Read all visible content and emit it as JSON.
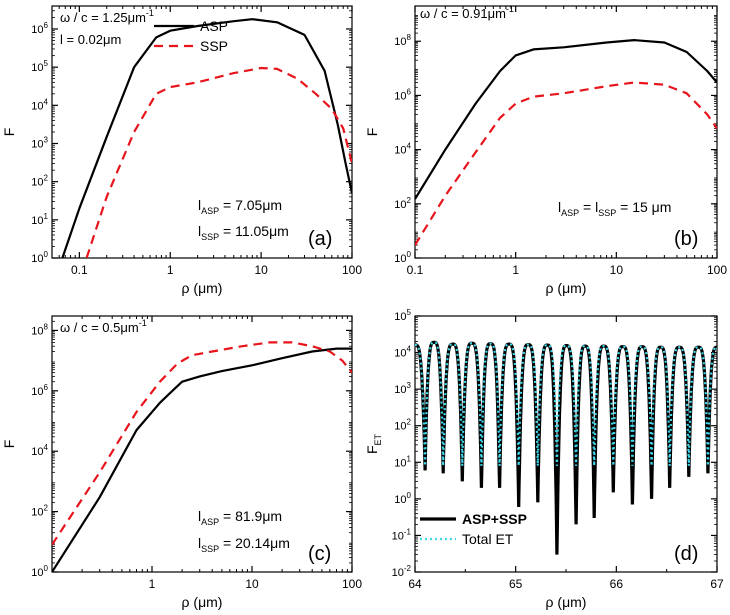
{
  "chart_data": [
    {
      "panel_label": "(a)",
      "type": "line",
      "xscale": "log",
      "yscale": "log",
      "xlim": [
        0.05,
        100
      ],
      "ylim": [
        1,
        4000000
      ],
      "x_ticks": [
        {
          "v": 0.1,
          "label": "0.1"
        },
        {
          "v": 1,
          "label": "1"
        },
        {
          "v": 10,
          "label": "10"
        },
        {
          "v": 100,
          "label": "100"
        }
      ],
      "y_ticks": [
        {
          "v": 1,
          "base": "10",
          "exp": "0"
        },
        {
          "v": 10,
          "base": "10",
          "exp": "1"
        },
        {
          "v": 100,
          "base": "10",
          "exp": "2"
        },
        {
          "v": 1000,
          "base": "10",
          "exp": "3"
        },
        {
          "v": 10000,
          "base": "10",
          "exp": "4"
        },
        {
          "v": 100000,
          "base": "10",
          "exp": "5"
        },
        {
          "v": 1000000,
          "base": "10",
          "exp": "6"
        }
      ],
      "xlabel": "ρ (μm)",
      "ylabel": "F",
      "ylabel_sub": "",
      "annotations": [
        {
          "base": "ω / c = 1.25μm",
          "sup": "-1",
          "sub": "",
          "tail": "",
          "pos": "top-left"
        },
        {
          "base": "l = 0.02μm",
          "sup": "",
          "sub": "",
          "tail": "",
          "pos": "top-left-2"
        }
      ],
      "lengths": [
        {
          "base": "l",
          "sub": "ASP",
          "tail": " = 7.05μm"
        },
        {
          "base": "l",
          "sub": "SSP",
          "tail": " = 11.05μm"
        }
      ],
      "legend": {
        "position": "top-center",
        "entries": [
          {
            "name": "ASP",
            "color": "#000000",
            "dash": "solid"
          },
          {
            "name": "SSP",
            "color": "#e8141c",
            "dash": "dashed"
          }
        ]
      },
      "series": [
        {
          "name": "ASP",
          "color": "#000000",
          "dash": "solid",
          "points": [
            [
              0.065,
              1
            ],
            [
              0.1,
              20
            ],
            [
              0.2,
              1500
            ],
            [
              0.4,
              100000
            ],
            [
              0.7,
              600000
            ],
            [
              1,
              900000
            ],
            [
              2,
              1200000
            ],
            [
              5,
              1600000
            ],
            [
              8,
              1800000
            ],
            [
              15,
              1500000
            ],
            [
              30,
              700000
            ],
            [
              50,
              80000
            ],
            [
              70,
              3000
            ],
            [
              85,
              300
            ],
            [
              100,
              50
            ]
          ]
        },
        {
          "name": "SSP",
          "color": "#e8141c",
          "dash": "dashed",
          "points": [
            [
              0.12,
              1
            ],
            [
              0.2,
              40
            ],
            [
              0.4,
              2000
            ],
            [
              0.7,
              20000
            ],
            [
              1,
              30000
            ],
            [
              2,
              40000
            ],
            [
              5,
              70000
            ],
            [
              10,
              95000
            ],
            [
              15,
              90000
            ],
            [
              25,
              50000
            ],
            [
              40,
              20000
            ],
            [
              60,
              8000
            ],
            [
              80,
              2500
            ],
            [
              100,
              300
            ]
          ]
        }
      ]
    },
    {
      "panel_label": "(b)",
      "type": "line",
      "xscale": "log",
      "yscale": "log",
      "xlim": [
        0.1,
        100
      ],
      "ylim": [
        1,
        2000000000
      ],
      "x_ticks": [
        {
          "v": 0.1,
          "label": "0.1"
        },
        {
          "v": 1,
          "label": "1"
        },
        {
          "v": 10,
          "label": "10"
        },
        {
          "v": 100,
          "label": "100"
        }
      ],
      "y_ticks": [
        {
          "v": 1,
          "base": "10",
          "exp": "0"
        },
        {
          "v": 100,
          "base": "10",
          "exp": "2"
        },
        {
          "v": 10000,
          "base": "10",
          "exp": "4"
        },
        {
          "v": 1000000,
          "base": "10",
          "exp": "6"
        },
        {
          "v": 100000000,
          "base": "10",
          "exp": "8"
        }
      ],
      "xlabel": "ρ (μm)",
      "ylabel": "F",
      "ylabel_sub": "",
      "annotations": [
        {
          "base": "ω / c = 0.91μm",
          "sup": "-1",
          "sub": "",
          "tail": "",
          "pos": "top-left"
        }
      ],
      "lengths": [
        {
          "base": "l",
          "sub": "ASP",
          "tail": " = l",
          "sub2": "SSP",
          "tail2": " = 15 μm"
        }
      ],
      "legend": null,
      "series": [
        {
          "name": "ASP",
          "color": "#000000",
          "dash": "solid",
          "points": [
            [
              0.1,
              150
            ],
            [
              0.2,
              10000
            ],
            [
              0.4,
              500000
            ],
            [
              0.7,
              8000000
            ],
            [
              1,
              30000000
            ],
            [
              1.5,
              50000000
            ],
            [
              3,
              60000000
            ],
            [
              8,
              90000000
            ],
            [
              15,
              110000000
            ],
            [
              30,
              90000000
            ],
            [
              50,
              40000000
            ],
            [
              80,
              8000000
            ],
            [
              100,
              3000000
            ]
          ]
        },
        {
          "name": "SSP",
          "color": "#e8141c",
          "dash": "dashed",
          "points": [
            [
              0.1,
              3
            ],
            [
              0.2,
              200
            ],
            [
              0.4,
              8000
            ],
            [
              0.7,
              150000
            ],
            [
              1,
              500000
            ],
            [
              1.5,
              900000
            ],
            [
              3,
              1200000
            ],
            [
              8,
              2200000
            ],
            [
              15,
              3000000
            ],
            [
              30,
              2500000
            ],
            [
              50,
              1200000
            ],
            [
              80,
              200000
            ],
            [
              100,
              60000
            ]
          ]
        }
      ]
    },
    {
      "panel_label": "(c)",
      "type": "line",
      "xscale": "log",
      "yscale": "log",
      "xlim": [
        0.1,
        100
      ],
      "ylim": [
        1,
        300000000
      ],
      "x_ticks": [
        {
          "v": 1,
          "label": "1"
        },
        {
          "v": 10,
          "label": "10"
        },
        {
          "v": 100,
          "label": "100"
        }
      ],
      "y_ticks": [
        {
          "v": 1,
          "base": "10",
          "exp": "0"
        },
        {
          "v": 100,
          "base": "10",
          "exp": "2"
        },
        {
          "v": 10000,
          "base": "10",
          "exp": "4"
        },
        {
          "v": 1000000,
          "base": "10",
          "exp": "6"
        },
        {
          "v": 100000000,
          "base": "10",
          "exp": "8"
        }
      ],
      "xlabel": "ρ (μm)",
      "ylabel": "F",
      "ylabel_sub": "",
      "annotations": [
        {
          "base": "ω / c = 0.5μm",
          "sup": "-1",
          "sub": "",
          "tail": "",
          "pos": "top-left"
        }
      ],
      "lengths": [
        {
          "base": "l",
          "sub": "ASP",
          "tail": " = 81.9μm"
        },
        {
          "base": "l",
          "sub": "SSP",
          "tail": " = 20.14μm"
        }
      ],
      "legend": null,
      "series": [
        {
          "name": "ASP",
          "color": "#000000",
          "dash": "solid",
          "points": [
            [
              0.1,
              1
            ],
            [
              0.3,
              300
            ],
            [
              0.7,
              50000
            ],
            [
              1.2,
              400000
            ],
            [
              1.6,
              1000000
            ],
            [
              2,
              2000000
            ],
            [
              3,
              3000000
            ],
            [
              5,
              4500000
            ],
            [
              10,
              7000000
            ],
            [
              20,
              12000000
            ],
            [
              40,
              20000000
            ],
            [
              70,
              25000000
            ],
            [
              100,
              25000000
            ]
          ]
        },
        {
          "name": "SSP",
          "color": "#e8141c",
          "dash": "dashed",
          "points": [
            [
              0.1,
              8
            ],
            [
              0.3,
              2000
            ],
            [
              0.7,
              200000
            ],
            [
              1.2,
              2000000
            ],
            [
              1.8,
              8000000
            ],
            [
              2.5,
              15000000
            ],
            [
              4,
              20000000
            ],
            [
              8,
              30000000
            ],
            [
              15,
              40000000
            ],
            [
              25,
              40000000
            ],
            [
              40,
              30000000
            ],
            [
              60,
              20000000
            ],
            [
              80,
              10000000
            ],
            [
              100,
              4000000
            ]
          ]
        }
      ]
    },
    {
      "panel_label": "(d)",
      "type": "line",
      "xscale": "linear",
      "yscale": "log",
      "xlim": [
        64,
        67
      ],
      "ylim": [
        0.01,
        100000
      ],
      "x_ticks": [
        {
          "v": 64,
          "label": "64"
        },
        {
          "v": 65,
          "label": "65"
        },
        {
          "v": 66,
          "label": "66"
        },
        {
          "v": 67,
          "label": "67"
        }
      ],
      "y_ticks": [
        {
          "v": 0.01,
          "base": "10",
          "exp": "-2"
        },
        {
          "v": 0.1,
          "base": "10",
          "exp": "-1"
        },
        {
          "v": 1,
          "base": "10",
          "exp": "0"
        },
        {
          "v": 10,
          "base": "10",
          "exp": "1"
        },
        {
          "v": 100,
          "base": "10",
          "exp": "2"
        },
        {
          "v": 1000,
          "base": "10",
          "exp": "3"
        },
        {
          "v": 10000,
          "base": "10",
          "exp": "4"
        },
        {
          "v": 100000,
          "base": "10",
          "exp": "5"
        }
      ],
      "xlabel": "ρ (μm)",
      "ylabel": "F",
      "ylabel_sub": "ET",
      "annotations": [],
      "lengths": [],
      "legend": {
        "position": "bottom-left",
        "entries": [
          {
            "name": "ASP+SSP",
            "color": "#000000",
            "dash": "solid"
          },
          {
            "name": "Total ET",
            "color": "#3fd7ea",
            "dash": "dotted"
          }
        ]
      },
      "oscillation": {
        "minima_x": [
          64.1,
          64.28,
          64.47,
          64.66,
          64.84,
          65.03,
          65.22,
          65.41,
          65.6,
          65.78,
          65.97,
          66.16,
          66.35,
          66.53,
          66.72,
          66.91
        ],
        "minima_y": [
          6,
          5,
          3,
          2,
          2,
          0.6,
          0.8,
          0.03,
          0.2,
          0.3,
          1.5,
          0.7,
          1,
          2,
          4,
          5
        ],
        "maxima_y": [
          18000,
          19000,
          17000,
          18000,
          17500,
          17000,
          16500,
          16000,
          15500,
          15000,
          15000,
          14500,
          14500,
          14000,
          14000,
          14000,
          14000
        ],
        "cyan_dip_floor": [
          8,
          8,
          8,
          8,
          8,
          8,
          8,
          8,
          8,
          8,
          8,
          8,
          8,
          8,
          8,
          8
        ]
      },
      "series": [
        {
          "name": "ASP+SSP",
          "color": "#000000",
          "dash": "solid"
        },
        {
          "name": "Total ET",
          "color": "#3fd7ea",
          "dash": "dotted"
        }
      ]
    }
  ]
}
